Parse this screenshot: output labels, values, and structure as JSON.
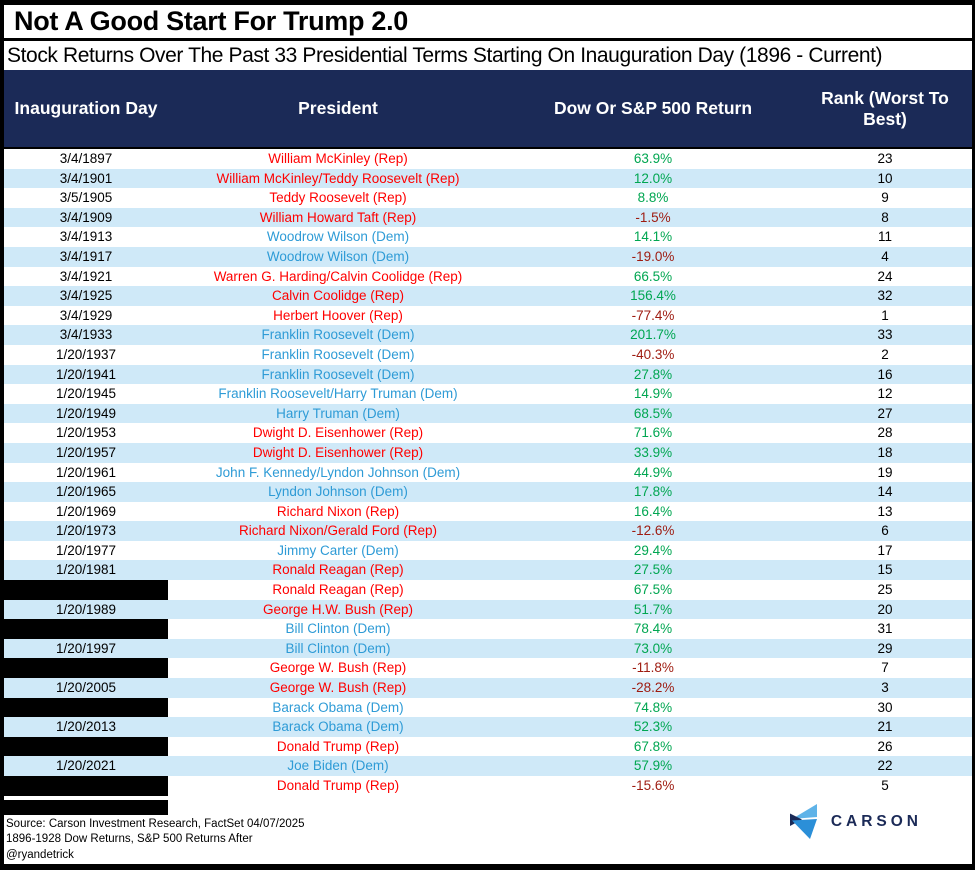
{
  "header": {
    "title": "Not A Good Start For Trump 2.0",
    "subtitle": "Stock Returns Over The Past 33 Presidential Terms Starting On Inauguration Day (1896 - Current)"
  },
  "chart_data": {
    "type": "table",
    "title": "Not A Good Start For Trump 2.0",
    "subtitle": "Stock Returns Over The Past 33 Presidential Terms Starting On Inauguration Day (1896 - Current)",
    "columns": [
      "Inauguration Day",
      "President",
      "Dow Or S&P 500 Return",
      "Rank (Worst To Best)"
    ],
    "rows": [
      {
        "date": "3/4/1897",
        "redacted": false,
        "president": "William McKinley (Rep)",
        "party": "Rep",
        "return": "63.9%",
        "rank": "23"
      },
      {
        "date": "3/4/1901",
        "redacted": false,
        "president": "William McKinley/Teddy Roosevelt (Rep)",
        "party": "Rep",
        "return": "12.0%",
        "rank": "10"
      },
      {
        "date": "3/5/1905",
        "redacted": false,
        "president": "Teddy Roosevelt (Rep)",
        "party": "Rep",
        "return": "8.8%",
        "rank": "9"
      },
      {
        "date": "3/4/1909",
        "redacted": false,
        "president": "William Howard Taft (Rep)",
        "party": "Rep",
        "return": "-1.5%",
        "rank": "8"
      },
      {
        "date": "3/4/1913",
        "redacted": false,
        "president": "Woodrow Wilson (Dem)",
        "party": "Dem",
        "return": "14.1%",
        "rank": "11"
      },
      {
        "date": "3/4/1917",
        "redacted": false,
        "president": "Woodrow Wilson (Dem)",
        "party": "Dem",
        "return": "-19.0%",
        "rank": "4"
      },
      {
        "date": "3/4/1921",
        "redacted": false,
        "president": "Warren G. Harding/Calvin Coolidge (Rep)",
        "party": "Rep",
        "return": "66.5%",
        "rank": "24"
      },
      {
        "date": "3/4/1925",
        "redacted": false,
        "president": "Calvin Coolidge (Rep)",
        "party": "Rep",
        "return": "156.4%",
        "rank": "32"
      },
      {
        "date": "3/4/1929",
        "redacted": false,
        "president": "Herbert Hoover (Rep)",
        "party": "Rep",
        "return": "-77.4%",
        "rank": "1"
      },
      {
        "date": "3/4/1933",
        "redacted": false,
        "president": "Franklin Roosevelt (Dem)",
        "party": "Dem",
        "return": "201.7%",
        "rank": "33"
      },
      {
        "date": "1/20/1937",
        "redacted": false,
        "president": "Franklin Roosevelt (Dem)",
        "party": "Dem",
        "return": "-40.3%",
        "rank": "2"
      },
      {
        "date": "1/20/1941",
        "redacted": false,
        "president": "Franklin Roosevelt (Dem)",
        "party": "Dem",
        "return": "27.8%",
        "rank": "16"
      },
      {
        "date": "1/20/1945",
        "redacted": false,
        "president": "Franklin Roosevelt/Harry Truman (Dem)",
        "party": "Dem",
        "return": "14.9%",
        "rank": "12"
      },
      {
        "date": "1/20/1949",
        "redacted": false,
        "president": "Harry Truman (Dem)",
        "party": "Dem",
        "return": "68.5%",
        "rank": "27"
      },
      {
        "date": "1/20/1953",
        "redacted": false,
        "president": "Dwight D. Eisenhower (Rep)",
        "party": "Rep",
        "return": "71.6%",
        "rank": "28"
      },
      {
        "date": "1/20/1957",
        "redacted": false,
        "president": "Dwight D. Eisenhower (Rep)",
        "party": "Rep",
        "return": "33.9%",
        "rank": "18"
      },
      {
        "date": "1/20/1961",
        "redacted": false,
        "president": "John F. Kennedy/Lyndon Johnson (Dem)",
        "party": "Dem",
        "return": "44.9%",
        "rank": "19"
      },
      {
        "date": "1/20/1965",
        "redacted": false,
        "president": "Lyndon Johnson (Dem)",
        "party": "Dem",
        "return": "17.8%",
        "rank": "14"
      },
      {
        "date": "1/20/1969",
        "redacted": false,
        "president": "Richard Nixon (Rep)",
        "party": "Rep",
        "return": "16.4%",
        "rank": "13"
      },
      {
        "date": "1/20/1973",
        "redacted": false,
        "president": "Richard Nixon/Gerald Ford (Rep)",
        "party": "Rep",
        "return": "-12.6%",
        "rank": "6"
      },
      {
        "date": "1/20/1977",
        "redacted": false,
        "president": "Jimmy Carter (Dem)",
        "party": "Dem",
        "return": "29.4%",
        "rank": "17"
      },
      {
        "date": "1/20/1981",
        "redacted": false,
        "president": "Ronald Reagan (Rep)",
        "party": "Rep",
        "return": "27.5%",
        "rank": "15"
      },
      {
        "date": "",
        "redacted": true,
        "president": "Ronald Reagan (Rep)",
        "party": "Rep",
        "return": "67.5%",
        "rank": "25"
      },
      {
        "date": "1/20/1989",
        "redacted": false,
        "president": "George H.W. Bush (Rep)",
        "party": "Rep",
        "return": "51.7%",
        "rank": "20"
      },
      {
        "date": "",
        "redacted": true,
        "president": "Bill Clinton (Dem)",
        "party": "Dem",
        "return": "78.4%",
        "rank": "31"
      },
      {
        "date": "1/20/1997",
        "redacted": false,
        "president": "Bill Clinton (Dem)",
        "party": "Dem",
        "return": "73.0%",
        "rank": "29"
      },
      {
        "date": "",
        "redacted": true,
        "president": "George W. Bush (Rep)",
        "party": "Rep",
        "return": "-11.8%",
        "rank": "7"
      },
      {
        "date": "1/20/2005",
        "redacted": false,
        "president": "George W. Bush (Rep)",
        "party": "Rep",
        "return": "-28.2%",
        "rank": "3"
      },
      {
        "date": "",
        "redacted": true,
        "president": "Barack Obama (Dem)",
        "party": "Dem",
        "return": "74.8%",
        "rank": "30"
      },
      {
        "date": "1/20/2013",
        "redacted": false,
        "president": "Barack Obama (Dem)",
        "party": "Dem",
        "return": "52.3%",
        "rank": "21"
      },
      {
        "date": "",
        "redacted": true,
        "president": "Donald Trump (Rep)",
        "party": "Rep",
        "return": "67.8%",
        "rank": "26"
      },
      {
        "date": "1/20/2021",
        "redacted": false,
        "president": "Joe Biden (Dem)",
        "party": "Dem",
        "return": "57.9%",
        "rank": "22"
      },
      {
        "date": "",
        "redacted": true,
        "president": "Donald Trump (Rep)",
        "party": "Rep",
        "return": "-15.6%",
        "rank": "5"
      }
    ]
  },
  "footer": {
    "source_line": "Source: Carson Investment Research, FactSet 04/07/2025",
    "note_line": "1896-1928 Dow Returns, S&P 500 Returns After",
    "handle_line": "@ryandetrick",
    "logo_text": "CARSON"
  },
  "colors": {
    "header_bg": "#1B2A57",
    "row_alt": "#CFE9F8",
    "rep": "#FF0000",
    "dem": "#2E9BD6",
    "positive": "#00A651",
    "negative": "#9E1B10",
    "logo_light": "#5FB3E8",
    "logo_mid": "#2B8FD8",
    "logo_dark": "#1B2A57"
  }
}
